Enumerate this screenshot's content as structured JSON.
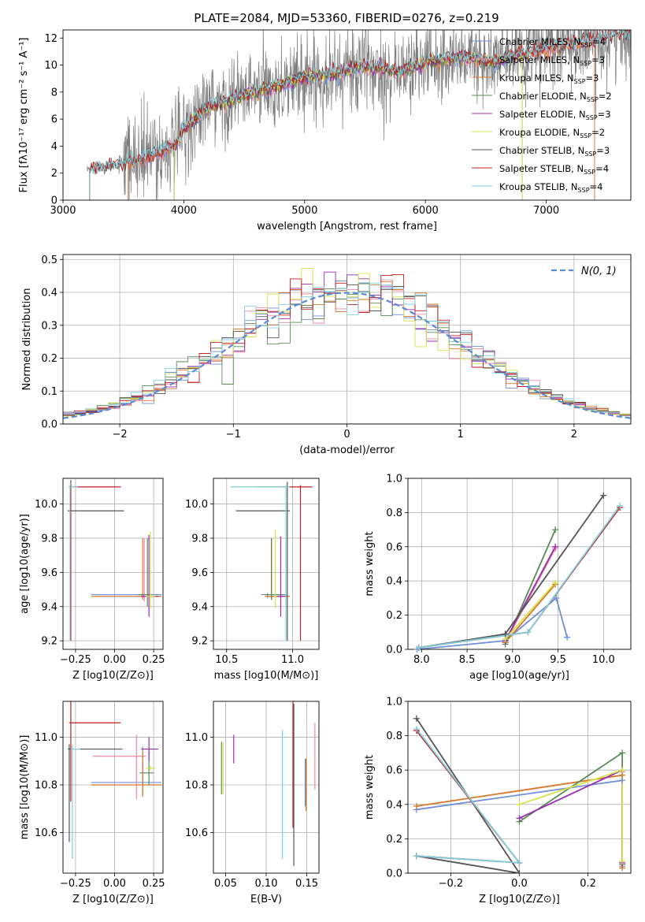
{
  "figure_title": "PLATE=2084, MJD=53360, FIBERID=0276, z=0.219",
  "colors": {
    "Chabrier MILES": "#6f8fd8",
    "Salpeter MILES": "#f08aa0",
    "Kroupa MILES": "#d6782a",
    "Chabrier ELODIE": "#5a8a56",
    "Salpeter ELODIE": "#9a2db0",
    "Kroupa ELODIE": "#d4e44a",
    "Chabrier STELIB": "#555555",
    "Salpeter STELIB": "#c02020",
    "Kroupa STELIB": "#7fd0dc",
    "data": "#7f7f7f",
    "normal": "#5b8ad6",
    "grid": "#b0b0b0"
  },
  "chart_data": [
    {
      "id": "spectrum",
      "type": "line",
      "title": "PLATE=2084, MJD=53360, FIBERID=0276, z=0.219",
      "xlabel": "wavelength [Angstrom, rest frame]",
      "ylabel": "Flux [fλ10⁻¹⁷ erg cm⁻² s⁻¹ A⁻¹]",
      "xlim": [
        3000,
        7700
      ],
      "ylim": [
        0,
        12.6
      ],
      "xticks": [
        3000,
        4000,
        5000,
        6000,
        7000
      ],
      "yticks": [
        0,
        2,
        4,
        6,
        8,
        10,
        12
      ],
      "legend_position": "top-right",
      "legend": [
        {
          "name": "Chabrier MILES",
          "sub": "SSP",
          "n": "4"
        },
        {
          "name": "Salpeter MILES",
          "sub": "SSP",
          "n": "3"
        },
        {
          "name": "Kroupa MILES",
          "sub": "SSP",
          "n": "3"
        },
        {
          "name": "Chabrier ELODIE",
          "sub": "SSP",
          "n": "2"
        },
        {
          "name": "Salpeter ELODIE",
          "sub": "SSP",
          "n": "3"
        },
        {
          "name": "Kroupa ELODIE",
          "sub": "SSP",
          "n": "2"
        },
        {
          "name": "Chabrier STELIB",
          "sub": "SSP",
          "n": "3"
        },
        {
          "name": "Salpeter STELIB",
          "sub": "SSP",
          "n": "4"
        },
        {
          "name": "Kroupa STELIB",
          "sub": "SSP",
          "n": "4"
        }
      ],
      "data_range": [
        3200,
        7700
      ],
      "model_ranges": [
        {
          "name": "Chabrier MILES",
          "range": [
            3540,
            7400
          ]
        },
        {
          "name": "Salpeter MILES",
          "range": [
            3540,
            7400
          ]
        },
        {
          "name": "Kroupa MILES",
          "range": [
            3540,
            7400
          ]
        },
        {
          "name": "Chabrier ELODIE",
          "range": [
            3920,
            6800
          ]
        },
        {
          "name": "Salpeter ELODIE",
          "range": [
            3920,
            6800
          ]
        },
        {
          "name": "Kroupa ELODIE",
          "range": [
            3920,
            6800
          ]
        },
        {
          "name": "Chabrier STELIB",
          "range": [
            3220,
            7700
          ]
        },
        {
          "name": "Salpeter STELIB",
          "range": [
            3220,
            7700
          ]
        },
        {
          "name": "Kroupa STELIB",
          "range": [
            3220,
            7700
          ]
        }
      ],
      "continuum": [
        [
          3200,
          2.3
        ],
        [
          3500,
          2.6
        ],
        [
          3600,
          2.9
        ],
        [
          3800,
          3.5
        ],
        [
          3950,
          4.2
        ],
        [
          4000,
          5.3
        ],
        [
          4200,
          6.8
        ],
        [
          4500,
          7.8
        ],
        [
          4800,
          8.5
        ],
        [
          5000,
          9.1
        ],
        [
          5200,
          9.3
        ],
        [
          5500,
          9.9
        ],
        [
          5800,
          9.5
        ],
        [
          6000,
          10.2
        ],
        [
          6300,
          10.6
        ],
        [
          6560,
          10.2
        ],
        [
          6800,
          10.8
        ],
        [
          7100,
          11.4
        ],
        [
          7500,
          12.0
        ],
        [
          7700,
          12.3
        ]
      ]
    },
    {
      "id": "residuals",
      "type": "step",
      "xlabel": "(data-model)/error",
      "ylabel": "Normed distribution",
      "xlim": [
        -2.5,
        2.5
      ],
      "ylim": [
        0,
        0.515
      ],
      "xticks": [
        -2,
        -1,
        0,
        1,
        2
      ],
      "yticks": [
        0.0,
        0.1,
        0.2,
        0.3,
        0.4,
        0.5
      ],
      "legend_position": "top-right",
      "legend": "N(0, 1)",
      "bin_width": 0.1
    },
    {
      "id": "age_vs_Z",
      "type": "errorbar",
      "xlabel": "Z [log10(Z/Z⊙)]",
      "ylabel": "age  [log10(age/yr)]",
      "xlim": [
        -0.33,
        0.31
      ],
      "ylim": [
        9.15,
        10.15
      ],
      "xticks": [
        -0.25,
        0.0,
        0.25
      ],
      "yticks": [
        9.2,
        9.4,
        9.6,
        9.8,
        10.0
      ],
      "points": [
        {
          "name": "Chabrier MILES",
          "x": 0.18,
          "xerr": [
            0.33,
            0.12
          ],
          "y": 9.47,
          "yerr": [
            0.02,
            0.01
          ]
        },
        {
          "name": "Salpeter MILES",
          "x": 0.19,
          "xerr": [
            0.05,
            0.1
          ],
          "y": 9.46,
          "yerr": [
            0.03,
            0.34
          ]
        },
        {
          "name": "Kroupa MILES",
          "x": 0.18,
          "xerr": [
            0.33,
            0.12
          ],
          "y": 9.46,
          "yerr": [
            0.02,
            0.34
          ]
        },
        {
          "name": "Chabrier ELODIE",
          "x": 0.21,
          "xerr": [
            0.06,
            0.03
          ],
          "y": 9.47,
          "yerr": [
            0.07,
            0.33
          ]
        },
        {
          "name": "Salpeter ELODIE",
          "x": 0.22,
          "xerr": [
            0.05,
            0.06
          ],
          "y": 9.46,
          "yerr": [
            0.12,
            0.36
          ]
        },
        {
          "name": "Kroupa ELODIE",
          "x": 0.23,
          "xerr": [
            0.03,
            0.03
          ],
          "y": 9.46,
          "yerr": [
            0.07,
            0.38
          ]
        },
        {
          "name": "Chabrier STELIB",
          "x": -0.28,
          "xerr": [
            0.02,
            0.34
          ],
          "y": 9.96,
          "yerr": [
            0.76,
            0.18
          ]
        },
        {
          "name": "Salpeter STELIB",
          "x": -0.28,
          "xerr": [
            0.01,
            0.32
          ],
          "y": 10.1,
          "yerr": [
            0.9,
            0.01
          ]
        },
        {
          "name": "Kroupa STELIB",
          "x": -0.285,
          "xerr": [
            0.01,
            0.05
          ],
          "y": 10.1,
          "yerr": [
            0.9,
            0.01
          ]
        }
      ]
    },
    {
      "id": "age_vs_mass",
      "type": "errorbar",
      "xlabel": "mass [log10(M/M⊙)]",
      "ylabel": "",
      "xlim": [
        10.4,
        11.2
      ],
      "ylim": [
        9.15,
        10.15
      ],
      "xticks": [
        10.5,
        11.0
      ],
      "yticks": [
        9.2,
        9.4,
        9.6,
        9.8,
        10.0
      ],
      "points": [
        {
          "name": "Chabrier MILES",
          "x": 10.81,
          "xerr": [
            0.05,
            0.15
          ],
          "y": 9.47,
          "yerr": [
            0.02,
            0.01
          ]
        },
        {
          "name": "Salpeter MILES",
          "x": 10.84,
          "xerr": [
            0.02,
            0.03
          ],
          "y": 9.46,
          "yerr": [
            0.02,
            0.34
          ]
        },
        {
          "name": "Kroupa MILES",
          "x": 10.84,
          "xerr": [
            0.05,
            0.14
          ],
          "y": 9.46,
          "yerr": [
            0.02,
            0.34
          ]
        },
        {
          "name": "Chabrier ELODIE",
          "x": 10.84,
          "xerr": [
            0.05,
            0.09
          ],
          "y": 9.47,
          "yerr": [
            0.03,
            0.33
          ]
        },
        {
          "name": "Salpeter ELODIE",
          "x": 10.91,
          "xerr": [
            0.05,
            0.05
          ],
          "y": 9.46,
          "yerr": [
            0.12,
            0.35
          ]
        },
        {
          "name": "Kroupa ELODIE",
          "x": 10.87,
          "xerr": [
            0.01,
            0.01
          ],
          "y": 9.46,
          "yerr": [
            0.07,
            0.39
          ]
        },
        {
          "name": "Chabrier STELIB",
          "x": 10.96,
          "xerr": [
            0.39,
            0.02
          ],
          "y": 9.96,
          "yerr": [
            0.76,
            0.17
          ]
        },
        {
          "name": "Salpeter STELIB",
          "x": 11.06,
          "xerr": [
            0.33,
            0.09
          ],
          "y": 10.1,
          "yerr": [
            0.9,
            0.01
          ]
        },
        {
          "name": "Kroupa STELIB",
          "x": 10.95,
          "xerr": [
            0.42,
            0.03
          ],
          "y": 10.1,
          "yerr": [
            0.9,
            0.01
          ]
        }
      ]
    },
    {
      "id": "mw_vs_age",
      "type": "line",
      "xlabel": "age  [log10(age/yr)]",
      "ylabel": "mass weight",
      "xlim": [
        7.85,
        10.3
      ],
      "ylim": [
        0,
        1.0
      ],
      "xticks": [
        8.0,
        8.5,
        9.0,
        9.5,
        10.0
      ],
      "yticks": [
        0.0,
        0.2,
        0.4,
        0.6,
        0.8,
        1.0
      ],
      "series": [
        {
          "name": "Chabrier MILES",
          "x": [
            7.95,
            8.92,
            9.48,
            9.6
          ],
          "y": [
            0.0,
            0.05,
            0.3,
            0.07
          ]
        },
        {
          "name": "Salpeter MILES",
          "x": [
            8.92,
            9.47
          ],
          "y": [
            0.04,
            0.59
          ]
        },
        {
          "name": "Kroupa MILES",
          "x": [
            8.92,
            9.47
          ],
          "y": [
            0.04,
            0.38
          ]
        },
        {
          "name": "Chabrier ELODIE",
          "x": [
            8.92,
            9.47
          ],
          "y": [
            0.03,
            0.7
          ]
        },
        {
          "name": "Salpeter ELODIE",
          "x": [
            8.92,
            9.47
          ],
          "y": [
            0.05,
            0.6
          ]
        },
        {
          "name": "Kroupa ELODIE",
          "x": [
            8.92,
            9.47
          ],
          "y": [
            0.06,
            0.39
          ]
        },
        {
          "name": "Chabrier STELIB",
          "x": [
            7.97,
            8.92,
            10.0
          ],
          "y": [
            0.01,
            0.09,
            0.9
          ]
        },
        {
          "name": "Salpeter STELIB",
          "x": [
            7.97,
            9.17,
            10.18
          ],
          "y": [
            0.01,
            0.1,
            0.83
          ]
        },
        {
          "name": "Kroupa STELIB",
          "x": [
            7.97,
            9.17,
            10.18
          ],
          "y": [
            0.01,
            0.1,
            0.84
          ]
        }
      ]
    },
    {
      "id": "mass_vs_Z",
      "type": "errorbar",
      "xlabel": "Z [log10(Z/Z⊙)]",
      "ylabel": "mass [log10(M/M⊙)]",
      "xlim": [
        -0.33,
        0.31
      ],
      "ylim": [
        10.43,
        11.15
      ],
      "xticks": [
        -0.25,
        0.0,
        0.25
      ],
      "yticks": [
        10.6,
        10.8,
        11.0
      ],
      "points": [
        {
          "name": "Chabrier MILES",
          "x": 0.18,
          "xerr": [
            0.33,
            0.12
          ],
          "y": 10.81,
          "yerr": [
            0.05,
            0.15
          ]
        },
        {
          "name": "Salpeter MILES",
          "x": 0.14,
          "xerr": [
            0.28,
            0.06
          ],
          "y": 10.92,
          "yerr": [
            0.18,
            0.09
          ]
        },
        {
          "name": "Kroupa MILES",
          "x": 0.18,
          "xerr": [
            0.33,
            0.12
          ],
          "y": 10.8,
          "yerr": [
            0.05,
            0.14
          ]
        },
        {
          "name": "Chabrier ELODIE",
          "x": 0.22,
          "xerr": [
            0.06,
            0.03
          ],
          "y": 10.85,
          "yerr": [
            0.05,
            0.09
          ]
        },
        {
          "name": "Salpeter ELODIE",
          "x": 0.22,
          "xerr": [
            0.05,
            0.06
          ],
          "y": 10.95,
          "yerr": [
            0.05,
            0.05
          ]
        },
        {
          "name": "Kroupa ELODIE",
          "x": 0.23,
          "xerr": [
            0.03,
            0.03
          ],
          "y": 10.87,
          "yerr": [
            0.01,
            0.01
          ]
        },
        {
          "name": "Chabrier STELIB",
          "x": -0.29,
          "xerr": [
            0.01,
            0.34
          ],
          "y": 10.95,
          "yerr": [
            0.39,
            0.02
          ]
        },
        {
          "name": "Salpeter STELIB",
          "x": -0.28,
          "xerr": [
            0.01,
            0.32
          ],
          "y": 11.06,
          "yerr": [
            0.33,
            0.09
          ]
        },
        {
          "name": "Kroupa STELIB",
          "x": -0.27,
          "xerr": [
            0.01,
            0.05
          ],
          "y": 10.95,
          "yerr": [
            0.46,
            0.02
          ]
        }
      ]
    },
    {
      "id": "mass_vs_ebv",
      "type": "errorbar",
      "xlabel": "E(B-V)",
      "ylabel": "",
      "xlim": [
        0.035,
        0.165
      ],
      "ylim": [
        10.43,
        11.15
      ],
      "xticks": [
        0.05,
        0.1,
        0.15
      ],
      "yticks": [
        10.6,
        10.8,
        11.0
      ],
      "points": [
        {
          "name": "Chabrier MILES",
          "x": 0.148,
          "xerr": [
            0,
            0
          ],
          "y": 10.81,
          "yerr": [
            0.1,
            0.1
          ]
        },
        {
          "name": "Salpeter MILES",
          "x": 0.16,
          "xerr": [
            0,
            0
          ],
          "y": 10.92,
          "yerr": [
            0.14,
            0.14
          ]
        },
        {
          "name": "Kroupa MILES",
          "x": 0.149,
          "xerr": [
            0,
            0
          ],
          "y": 10.8,
          "yerr": [
            0.11,
            0.11
          ]
        },
        {
          "name": "Chabrier ELODIE",
          "x": 0.045,
          "xerr": [
            0,
            0
          ],
          "y": 10.87,
          "yerr": [
            0.11,
            0.11
          ]
        },
        {
          "name": "Salpeter ELODIE",
          "x": 0.06,
          "xerr": [
            0,
            0
          ],
          "y": 10.95,
          "yerr": [
            0.06,
            0.06
          ]
        },
        {
          "name": "Kroupa ELODIE",
          "x": 0.047,
          "xerr": [
            0,
            0
          ],
          "y": 10.87,
          "yerr": [
            0.11,
            0.11
          ]
        },
        {
          "name": "Chabrier STELIB",
          "x": 0.134,
          "xerr": [
            0,
            0
          ],
          "y": 10.8,
          "yerr": [
            0.34,
            0.34
          ]
        },
        {
          "name": "Salpeter STELIB",
          "x": 0.133,
          "xerr": [
            0,
            0
          ],
          "y": 10.89,
          "yerr": [
            0.27,
            0.27
          ]
        },
        {
          "name": "Kroupa STELIB",
          "x": 0.12,
          "xerr": [
            0,
            0
          ],
          "y": 10.76,
          "yerr": [
            0.27,
            0.27
          ]
        }
      ]
    },
    {
      "id": "mw_vs_Z",
      "type": "line",
      "xlabel": "Z [log10(Z/Z⊙)]",
      "ylabel": "mass weight",
      "xlim": [
        -0.325,
        0.325
      ],
      "ylim": [
        0,
        1.0
      ],
      "xticks": [
        -0.2,
        0.0,
        0.2
      ],
      "yticks": [
        0.0,
        0.2,
        0.4,
        0.6,
        0.8,
        1.0
      ],
      "series": [
        {
          "name": "Chabrier MILES",
          "x": [
            -0.3,
            0.3
          ],
          "y": [
            0.37,
            0.54
          ]
        },
        {
          "name": "Salpeter MILES",
          "x": [
            0.3,
            0.3
          ],
          "y": [
            0.04,
            0.59
          ]
        },
        {
          "name": "Kroupa MILES",
          "x": [
            -0.3,
            0.3,
            0.3
          ],
          "y": [
            0.39,
            0.57,
            0.03
          ]
        },
        {
          "name": "Chabrier ELODIE",
          "x": [
            0.0,
            0.3,
            0.3
          ],
          "y": [
            0.3,
            0.7,
            0.05
          ]
        },
        {
          "name": "Salpeter ELODIE",
          "x": [
            0.0,
            0.3,
            0.3
          ],
          "y": [
            0.32,
            0.6,
            0.06
          ]
        },
        {
          "name": "Kroupa ELODIE",
          "x": [
            0.0,
            0.3,
            0.3
          ],
          "y": [
            0.4,
            0.6,
            0.07
          ]
        },
        {
          "name": "Chabrier STELIB",
          "x": [
            -0.3,
            0.0,
            -0.3
          ],
          "y": [
            0.9,
            0.0,
            0.1
          ]
        },
        {
          "name": "Salpeter STELIB",
          "x": [
            -0.3,
            0.0,
            -0.3
          ],
          "y": [
            0.83,
            0.06,
            0.1
          ]
        },
        {
          "name": "Kroupa STELIB",
          "x": [
            -0.3,
            0.0,
            -0.3
          ],
          "y": [
            0.84,
            0.06,
            0.1
          ]
        }
      ]
    }
  ]
}
